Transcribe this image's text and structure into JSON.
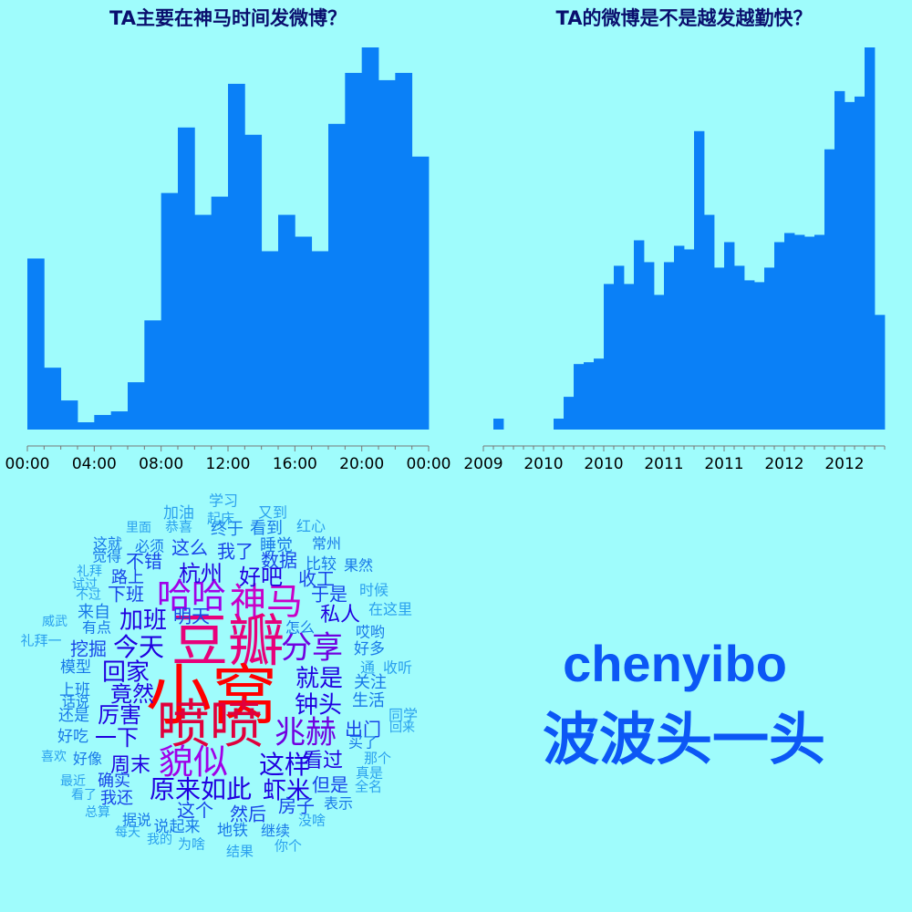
{
  "colors": {
    "background": "#9ffcfc",
    "bar": "#0a80f7",
    "title": "#0a0f6e",
    "user_text": "#0c57f5"
  },
  "chart_data": [
    {
      "type": "bar",
      "title": "TA主要在神马时间发微博？",
      "xlabel": "",
      "ylabel": "",
      "tick_labels": [
        "00:00",
        "04:00",
        "08:00",
        "12:00",
        "16:00",
        "20:00",
        "00:00"
      ],
      "bins_per_tick": 4,
      "values": [
        47,
        17,
        8,
        2,
        4,
        5,
        13,
        30,
        65,
        83,
        59,
        64,
        95,
        81,
        49,
        59,
        53,
        49,
        84,
        98,
        105,
        96,
        98,
        75
      ],
      "ylim": [
        0,
        105
      ],
      "grid": false
    },
    {
      "type": "bar",
      "title": "TA的微博是不是越发越勤快？",
      "xlabel": "",
      "ylabel": "",
      "tick_labels": [
        "2009",
        "2010",
        "2010",
        "2011",
        "2011",
        "2012",
        "2012"
      ],
      "bins_per_tick": 6,
      "values": [
        0,
        3,
        0,
        0,
        0,
        0,
        0,
        3,
        9,
        18,
        18.5,
        19.5,
        40,
        45,
        40,
        52,
        46,
        37,
        46,
        50.5,
        49.5,
        82,
        59,
        44.5,
        51.5,
        45,
        41,
        40.5,
        44.5,
        51.5,
        54,
        53.5,
        53,
        53.5,
        77,
        93,
        90,
        91.5,
        105,
        31.5
      ],
      "ylim": [
        0,
        105
      ],
      "grid": false
    }
  ],
  "wordcloud": {
    "words": [
      {
        "text": "小窝",
        "color": "#ff0000"
      },
      {
        "text": "豆瓣",
        "color": "#e8007a"
      },
      {
        "text": "喷喷",
        "color": "#e0003c"
      },
      {
        "text": "神马",
        "color": "#c800c8"
      },
      {
        "text": "哈哈",
        "color": "#a000e8"
      },
      {
        "text": "貌似",
        "color": "#a000e8"
      },
      {
        "text": "兆赫",
        "color": "#7000e0"
      },
      {
        "text": "分享",
        "color": "#7000e0"
      },
      {
        "text": "原来如此",
        "color": "#2000e0"
      },
      {
        "text": "这样",
        "color": "#2000e0"
      },
      {
        "text": "今天",
        "color": "#2000e0"
      },
      {
        "text": "加班",
        "color": "#2000e0"
      },
      {
        "text": "回家",
        "color": "#2000e0"
      },
      {
        "text": "钟头",
        "color": "#2000e0"
      },
      {
        "text": "就是",
        "color": "#2000e0"
      },
      {
        "text": "虾米",
        "color": "#2000e0"
      },
      {
        "text": "杭州",
        "color": "#2000e0"
      },
      {
        "text": "好吧",
        "color": "#2000e0"
      },
      {
        "text": "竟然",
        "color": "#2000e0"
      },
      {
        "text": "厉害",
        "color": "#2000e0"
      },
      {
        "text": "一下",
        "color": "#2000e0"
      },
      {
        "text": "周末",
        "color": "#2000e0"
      },
      {
        "text": "看过",
        "color": "#2000e0"
      },
      {
        "text": "私人",
        "color": "#2000e0"
      },
      {
        "text": "数据",
        "color": "#1845e8"
      },
      {
        "text": "收工",
        "color": "#1845e8"
      },
      {
        "text": "于是",
        "color": "#1845e8"
      },
      {
        "text": "明天",
        "color": "#1845e8"
      },
      {
        "text": "下班",
        "color": "#1845e8"
      },
      {
        "text": "不错",
        "color": "#1845e8"
      },
      {
        "text": "这么",
        "color": "#1845e8"
      },
      {
        "text": "我了",
        "color": "#1845e8"
      },
      {
        "text": "挖掘",
        "color": "#1845e8"
      },
      {
        "text": "出门",
        "color": "#1845e8"
      },
      {
        "text": "但是",
        "color": "#1845e8"
      },
      {
        "text": "房子",
        "color": "#1845e8"
      },
      {
        "text": "然后",
        "color": "#1845e8"
      },
      {
        "text": "这个",
        "color": "#1845e8"
      },
      {
        "text": "确实",
        "color": "#1845e8"
      },
      {
        "text": "我还",
        "color": "#1845e8"
      },
      {
        "text": "路上",
        "color": "#1845e8"
      },
      {
        "text": "来自",
        "color": "#1878e8"
      },
      {
        "text": "有点",
        "color": "#1878e8"
      },
      {
        "text": "比较",
        "color": "#1878e8"
      },
      {
        "text": "果然",
        "color": "#1878e8"
      },
      {
        "text": "终于",
        "color": "#1878e8"
      },
      {
        "text": "看到",
        "color": "#1878e8"
      },
      {
        "text": "睡觉",
        "color": "#1878e8"
      },
      {
        "text": "常州",
        "color": "#1878e8"
      },
      {
        "text": "必须",
        "color": "#1878e8"
      },
      {
        "text": "这就",
        "color": "#1878e8"
      },
      {
        "text": "觉得",
        "color": "#1878e8"
      },
      {
        "text": "关注",
        "color": "#1878e8"
      },
      {
        "text": "生活",
        "color": "#1878e8"
      },
      {
        "text": "好多",
        "color": "#1878e8"
      },
      {
        "text": "哎哟",
        "color": "#1878e8"
      },
      {
        "text": "买了",
        "color": "#1878e8"
      },
      {
        "text": "怎么",
        "color": "#1878e8"
      },
      {
        "text": "模型",
        "color": "#1878e8"
      },
      {
        "text": "上班",
        "color": "#1878e8"
      },
      {
        "text": "还是",
        "color": "#1878e8"
      },
      {
        "text": "话说",
        "color": "#1878e8"
      },
      {
        "text": "好吃",
        "color": "#1878e8"
      },
      {
        "text": "好像",
        "color": "#1878e8"
      },
      {
        "text": "据说",
        "color": "#1878e8"
      },
      {
        "text": "说起来",
        "color": "#1878e8"
      },
      {
        "text": "地铁",
        "color": "#1878e8"
      },
      {
        "text": "继续",
        "color": "#1878e8"
      },
      {
        "text": "表示",
        "color": "#1878e8"
      },
      {
        "text": "加油",
        "color": "#2aa0ee"
      },
      {
        "text": "学习",
        "color": "#2aa0ee"
      },
      {
        "text": "起床",
        "color": "#2aa0ee"
      },
      {
        "text": "又到",
        "color": "#2aa0ee"
      },
      {
        "text": "里面",
        "color": "#2aa0ee"
      },
      {
        "text": "恭喜",
        "color": "#2aa0ee"
      },
      {
        "text": "红心",
        "color": "#2aa0ee"
      },
      {
        "text": "礼拜",
        "color": "#2aa0ee"
      },
      {
        "text": "试过",
        "color": "#2aa0ee"
      },
      {
        "text": "不过",
        "color": "#2aa0ee"
      },
      {
        "text": "时候",
        "color": "#2aa0ee"
      },
      {
        "text": "在这里",
        "color": "#2aa0ee"
      },
      {
        "text": "威武",
        "color": "#2aa0ee"
      },
      {
        "text": "礼拜一",
        "color": "#2aa0ee"
      },
      {
        "text": "通",
        "color": "#2aa0ee"
      },
      {
        "text": "收听",
        "color": "#2aa0ee"
      },
      {
        "text": "同学",
        "color": "#2aa0ee"
      },
      {
        "text": "回来",
        "color": "#2aa0ee"
      },
      {
        "text": "喜欢",
        "color": "#2aa0ee"
      },
      {
        "text": "那个",
        "color": "#2aa0ee"
      },
      {
        "text": "真是",
        "color": "#2aa0ee"
      },
      {
        "text": "全名",
        "color": "#2aa0ee"
      },
      {
        "text": "最近",
        "color": "#2aa0ee"
      },
      {
        "text": "看了",
        "color": "#2aa0ee"
      },
      {
        "text": "总算",
        "color": "#2aa0ee"
      },
      {
        "text": "每天",
        "color": "#2aa0ee"
      },
      {
        "text": "我的",
        "color": "#2aa0ee"
      },
      {
        "text": "为啥",
        "color": "#2aa0ee"
      },
      {
        "text": "结果",
        "color": "#2aa0ee"
      },
      {
        "text": "你个",
        "color": "#2aa0ee"
      },
      {
        "text": "没啥",
        "color": "#2aa0ee"
      }
    ]
  },
  "user": {
    "id": "chenyibo",
    "nickname": "波波头一头"
  }
}
